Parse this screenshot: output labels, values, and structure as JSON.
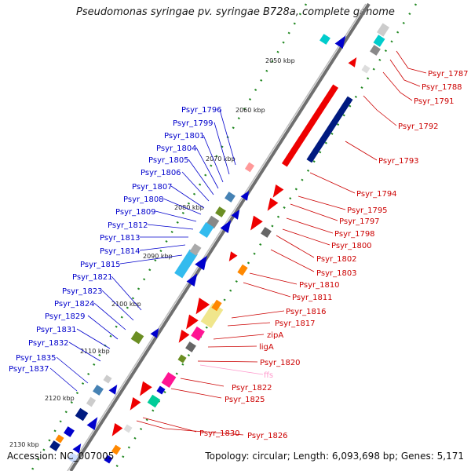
{
  "title": "Pseudomonas syringae pv. syringae B728a, complete genome",
  "accession_text": "Accession: NC_007005",
  "topology_text": "Topology: circular; Length: 6,093,698 bp; Genes: 5,171",
  "colors": {
    "backbone": "#7f7f7f",
    "tick": "#228822",
    "left_label": "#0000cc",
    "right_label": "#cc0000",
    "rna_label": "#ff99cc"
  },
  "ticks": [
    "2050 kbp",
    "2060 kbp",
    "2070 kbp",
    "2080 kbp",
    "2090 kbp",
    "2100 kbp",
    "2110 kbp",
    "2120 kbp",
    "2130 kbp"
  ],
  "left_labels": [
    "Psyr_1796",
    "Psyr_1799",
    "Psyr_1801",
    "Psyr_1804",
    "Psyr_1805",
    "Psyr_1806",
    "Psyr_1807",
    "Psyr_1808",
    "Psyr_1809",
    "Psyr_1812",
    "Psyr_1813",
    "Psyr_1814",
    "Psyr_1815",
    "Psyr_1821",
    "Psyr_1823",
    "Psyr_1824",
    "Psyr_1829",
    "Psyr_1831",
    "Psyr_1832",
    "Psyr_1835",
    "Psyr_1837"
  ],
  "right_labels": [
    "Psyr_1787",
    "Psyr_1788",
    "Psyr_1791",
    "Psyr_1792",
    "Psyr_1793",
    "Psyr_1794",
    "Psyr_1795",
    "Psyr_1797",
    "Psyr_1798",
    "Psyr_1800",
    "Psyr_1802",
    "Psyr_1803",
    "Psyr_1810",
    "Psyr_1811",
    "Psyr_1816",
    "Psyr_1817",
    "zipA",
    "ligA",
    "Psyr_1820",
    "ffs",
    "Psyr_1822",
    "Psyr_1825",
    "Psyr_1830",
    "Psyr_1826"
  ]
}
